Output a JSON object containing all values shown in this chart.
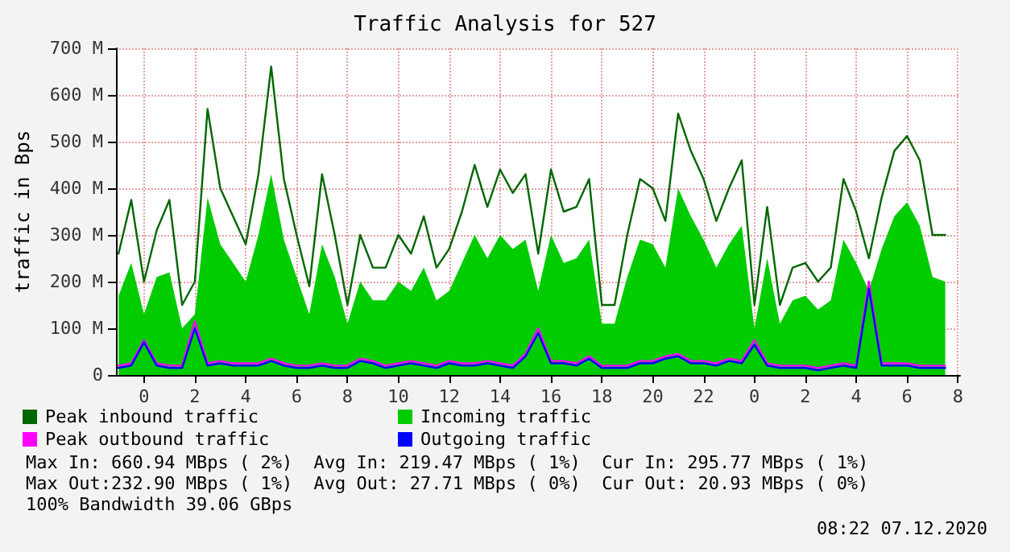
{
  "chart_data": {
    "type": "line",
    "title": "Traffic Analysis for 527",
    "ylabel": "traffic in Bps",
    "x": [
      "2020-12-05T23:00",
      "2020-12-05T23:30",
      "2020-12-06T00:00",
      "2020-12-06T00:30",
      "2020-12-06T01:00",
      "2020-12-06T01:30",
      "2020-12-06T02:00",
      "2020-12-06T02:30",
      "2020-12-06T03:00",
      "2020-12-06T03:30",
      "2020-12-06T04:00",
      "2020-12-06T04:30",
      "2020-12-06T05:00",
      "2020-12-06T05:30",
      "2020-12-06T06:00",
      "2020-12-06T06:30",
      "2020-12-06T07:00",
      "2020-12-06T07:30",
      "2020-12-06T08:00",
      "2020-12-06T08:30",
      "2020-12-06T09:00",
      "2020-12-06T09:30",
      "2020-12-06T10:00",
      "2020-12-06T10:30",
      "2020-12-06T11:00",
      "2020-12-06T11:30",
      "2020-12-06T12:00",
      "2020-12-06T12:30",
      "2020-12-06T13:00",
      "2020-12-06T13:30",
      "2020-12-06T14:00",
      "2020-12-06T14:30",
      "2020-12-06T15:00",
      "2020-12-06T15:30",
      "2020-12-06T16:00",
      "2020-12-06T16:30",
      "2020-12-06T17:00",
      "2020-12-06T17:30",
      "2020-12-06T18:00",
      "2020-12-06T18:30",
      "2020-12-06T19:00",
      "2020-12-06T19:30",
      "2020-12-06T20:00",
      "2020-12-06T20:30",
      "2020-12-06T21:00",
      "2020-12-06T21:30",
      "2020-12-06T22:00",
      "2020-12-06T22:30",
      "2020-12-06T23:00",
      "2020-12-06T23:30",
      "2020-12-07T00:00",
      "2020-12-07T00:30",
      "2020-12-07T01:00",
      "2020-12-07T01:30",
      "2020-12-07T02:00",
      "2020-12-07T02:30",
      "2020-12-07T03:00",
      "2020-12-07T03:30",
      "2020-12-07T04:00",
      "2020-12-07T04:30",
      "2020-12-07T05:00",
      "2020-12-07T05:30",
      "2020-12-07T06:00",
      "2020-12-07T06:30",
      "2020-12-07T07:00",
      "2020-12-07T07:30"
    ],
    "series": [
      {
        "name": "Peak inbound traffic",
        "color": "#006600",
        "values": [
          260,
          375,
          200,
          310,
          375,
          150,
          200,
          570,
          400,
          340,
          280,
          430,
          661,
          420,
          300,
          190,
          430,
          300,
          150,
          300,
          230,
          230,
          300,
          260,
          340,
          230,
          270,
          350,
          450,
          360,
          440,
          390,
          430,
          260,
          440,
          350,
          360,
          420,
          150,
          150,
          300,
          420,
          400,
          330,
          560,
          480,
          420,
          330,
          400,
          460,
          150,
          360,
          150,
          230,
          240,
          200,
          230,
          420,
          350,
          250,
          380,
          480,
          512,
          460,
          300,
          300
        ]
      },
      {
        "name": "Incoming traffic",
        "type": "area",
        "color": "#00cc00",
        "values": [
          170,
          240,
          130,
          210,
          220,
          100,
          130,
          380,
          280,
          240,
          200,
          300,
          430,
          290,
          210,
          130,
          280,
          210,
          110,
          200,
          160,
          160,
          200,
          180,
          230,
          160,
          180,
          240,
          300,
          250,
          300,
          270,
          290,
          180,
          300,
          240,
          250,
          290,
          110,
          110,
          210,
          290,
          280,
          230,
          400,
          340,
          290,
          230,
          280,
          320,
          100,
          250,
          110,
          160,
          170,
          140,
          160,
          290,
          240,
          180,
          270,
          340,
          370,
          320,
          210,
          200
        ]
      },
      {
        "name": "Peak outbound traffic",
        "color": "#ff00ff",
        "values": [
          20,
          25,
          75,
          25,
          20,
          20,
          115,
          25,
          30,
          25,
          25,
          25,
          35,
          25,
          20,
          20,
          25,
          20,
          20,
          35,
          30,
          20,
          25,
          30,
          25,
          20,
          30,
          25,
          25,
          30,
          25,
          20,
          45,
          100,
          30,
          30,
          25,
          40,
          20,
          20,
          20,
          30,
          30,
          40,
          45,
          30,
          30,
          25,
          35,
          30,
          75,
          25,
          20,
          20,
          20,
          15,
          20,
          25,
          20,
          200,
          25,
          25,
          25,
          20,
          20,
          20
        ]
      },
      {
        "name": "Outgoing traffic",
        "color": "#0000ff",
        "values": [
          15,
          20,
          70,
          20,
          15,
          15,
          100,
          20,
          25,
          20,
          20,
          20,
          30,
          20,
          15,
          15,
          20,
          15,
          15,
          30,
          25,
          15,
          20,
          25,
          20,
          15,
          25,
          20,
          20,
          25,
          20,
          15,
          40,
          90,
          25,
          25,
          20,
          35,
          15,
          15,
          15,
          25,
          25,
          35,
          40,
          25,
          25,
          20,
          30,
          25,
          65,
          20,
          15,
          15,
          15,
          10,
          15,
          20,
          15,
          185,
          20,
          20,
          20,
          15,
          15,
          15
        ]
      }
    ],
    "xlim": [
      "2020-12-05T22:54",
      "2020-12-07T08:05"
    ],
    "xticks": [
      {
        "value": "2020-12-06T00:00",
        "label": "0"
      },
      {
        "value": "2020-12-06T02:00",
        "label": "2"
      },
      {
        "value": "2020-12-06T04:00",
        "label": "4"
      },
      {
        "value": "2020-12-06T06:00",
        "label": "6"
      },
      {
        "value": "2020-12-06T08:00",
        "label": "8"
      },
      {
        "value": "2020-12-06T10:00",
        "label": "10"
      },
      {
        "value": "2020-12-06T12:00",
        "label": "12"
      },
      {
        "value": "2020-12-06T14:00",
        "label": "14"
      },
      {
        "value": "2020-12-06T16:00",
        "label": "16"
      },
      {
        "value": "2020-12-06T18:00",
        "label": "18"
      },
      {
        "value": "2020-12-06T20:00",
        "label": "20"
      },
      {
        "value": "2020-12-06T22:00",
        "label": "22"
      },
      {
        "value": "2020-12-07T00:00",
        "label": "0"
      },
      {
        "value": "2020-12-07T02:00",
        "label": "2"
      },
      {
        "value": "2020-12-07T04:00",
        "label": "4"
      },
      {
        "value": "2020-12-07T06:00",
        "label": "6"
      },
      {
        "value": "2020-12-07T08:00",
        "label": "8"
      }
    ],
    "ylim": [
      0,
      700
    ],
    "yticks": [
      0,
      {
        "value": 100,
        "label": "100 M"
      },
      {
        "value": 200,
        "label": "200 M"
      },
      {
        "value": 300,
        "label": "300 M"
      },
      {
        "value": 400,
        "label": "400 M"
      },
      {
        "value": 500,
        "label": "500 M"
      },
      {
        "value": 600,
        "label": "600 M"
      },
      {
        "value": 700,
        "label": "700 M"
      }
    ],
    "grid": true,
    "legend": "bottom",
    "marker": "none",
    "line_style": "solid",
    "annotations": [
      "Max In: 660.94 MBps ( 2%)  Avg In: 219.47 MBps ( 1%)  Cur In: 295.77 MBps ( 1%)",
      "Max Out:232.90 MBps ( 1%)  Avg Out: 27.71 MBps ( 0%)  Cur Out: 20.93 MBps ( 0%)",
      "100% Bandwidth 39.06 GBps",
      "08:22 07.12.2020"
    ]
  }
}
